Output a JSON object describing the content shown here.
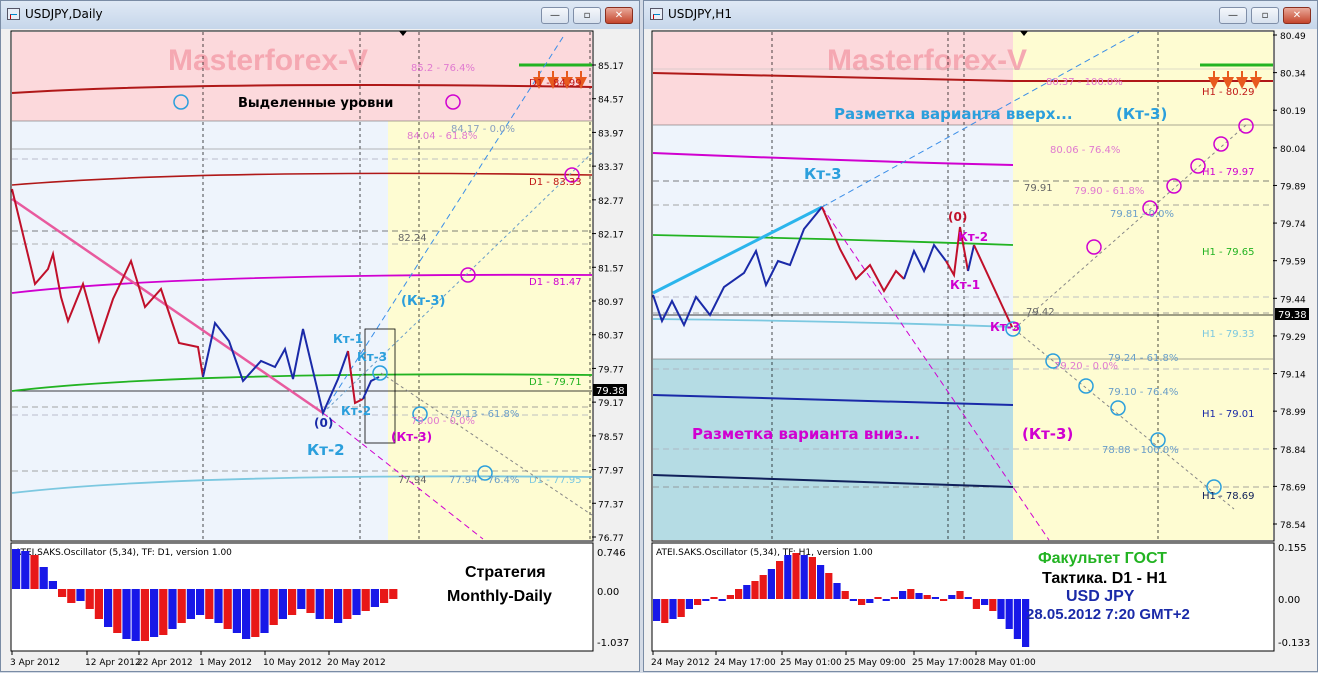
{
  "left_window": {
    "title": "USDJPY,Daily",
    "watermark": "Masterforex-V",
    "annotation": "Выделенные уровни",
    "strategy_line1": "Стратегия",
    "strategy_line2": "Monthly-Daily",
    "labels": {
      "level_d1_84_99": "D1 - 84.99",
      "level_d1_83_33": "D1 - 83.33",
      "level_d1_81_47": "D1 - 81.47",
      "level_d1_79_71": "D1 - 79.71",
      "level_d1_77_95": "D1 - 77.95",
      "fib_85_2": "85.2 - 76.4%",
      "fib_84_04": "84.04 - 61.8%",
      "fib_84_17": "84.17 - 0.0%",
      "val_82_24": "82.24",
      "fib_79_13": "79.13 - 61.8%",
      "fib_79_00": "79.00 - 0.0%",
      "val_77_94": "77.94",
      "fib_77_94": "77.94 - 76.4%",
      "kt1": "Кт-1",
      "kt3": "Кт-3",
      "kt2_small": "Кт-2",
      "kt2_big": "Кт-2",
      "kt3_paren_blue": "(Кт-3)",
      "kt3_paren_mag": "(Кт-3)",
      "zero": "(0)"
    },
    "price_axis": [
      "85.17",
      "84.57",
      "83.97",
      "83.37",
      "82.77",
      "82.17",
      "81.57",
      "80.97",
      "80.37",
      "79.77",
      "79.17",
      "78.57",
      "77.97",
      "77.37",
      "76.77"
    ],
    "current_price": "79.38",
    "oscillator": {
      "title": "ATEI.SAKS.Oscillator (5,34), TF: D1, version 1.00",
      "max": "0.746",
      "zero": "0.00",
      "min": "-1.037"
    },
    "time_axis": [
      "3 Apr 2012",
      "12 Apr 2012",
      "22 Apr 2012",
      "1 May 2012",
      "10 May 2012",
      "20 May 2012"
    ]
  },
  "right_window": {
    "title": "USDJPY,H1",
    "watermark": "Masterforex-V",
    "markup_up": "Разметка варианта вверх...",
    "markup_up_kt": "(Кт-3)",
    "markup_down": "Разметка варианта вниз...",
    "markup_down_kt": "(Кт-3)",
    "labels": {
      "level_h1_80_29": "H1 - 80.29",
      "level_h1_79_97": "H1 - 79.97",
      "level_h1_79_65": "H1 - 79.65",
      "level_h1_79_33": "H1 - 79.33",
      "level_h1_79_01": "H1 - 79.01",
      "level_h1_78_69": "H1 - 78.69",
      "fib_80_37": "80.37 - 100.0%",
      "fib_80_06": "80.06 - 76.4%",
      "val_79_91": "79.91",
      "fib_79_90": "79.90 - 61.8%",
      "fib_79_81": "79.81 - 0.0%",
      "val_79_42": "79.42",
      "fib_79_20": "79.20 - 0.0%",
      "fib_79_24": "79.24 - 61.8%",
      "fib_79_10": "79.10 - 76.4%",
      "fib_78_88": "78.88 - 100.0%",
      "kt3_top": "Кт-3",
      "zero": "(0)",
      "kt2": "Кт-2",
      "kt1": "Кт-1",
      "kt3": "Кт-3"
    },
    "price_axis": [
      "80.49",
      "80.34",
      "80.19",
      "80.04",
      "79.89",
      "79.74",
      "79.59",
      "79.44",
      "79.29",
      "79.14",
      "78.99",
      "78.84",
      "78.69",
      "78.54"
    ],
    "current_price": "79.38",
    "oscillator": {
      "title": "ATEI.SAKS.Oscillator (5,34), TF: H1, version 1.00",
      "max": "0.155",
      "zero": "0.00",
      "min": "-0.133"
    },
    "footer": {
      "faculty": "Факультет ГОСТ",
      "tactic": "Тактика. D1 - H1",
      "pair": "USD JPY",
      "datetime": "28.05.2012 7:20 GMT+2"
    },
    "time_axis": [
      "24 May 2012",
      "24 May 17:00",
      "25 May 01:00",
      "25 May 09:00",
      "25 May 17:00",
      "28 May 01:00"
    ]
  },
  "colors": {
    "red_zone": "#fcd9dc",
    "blue_zone": "#eef4fc",
    "yellow_zone": "#fefcd2",
    "teal_zone": "#b5dce4",
    "magenta": "#d700d7",
    "cyan": "#2b9fdc"
  }
}
